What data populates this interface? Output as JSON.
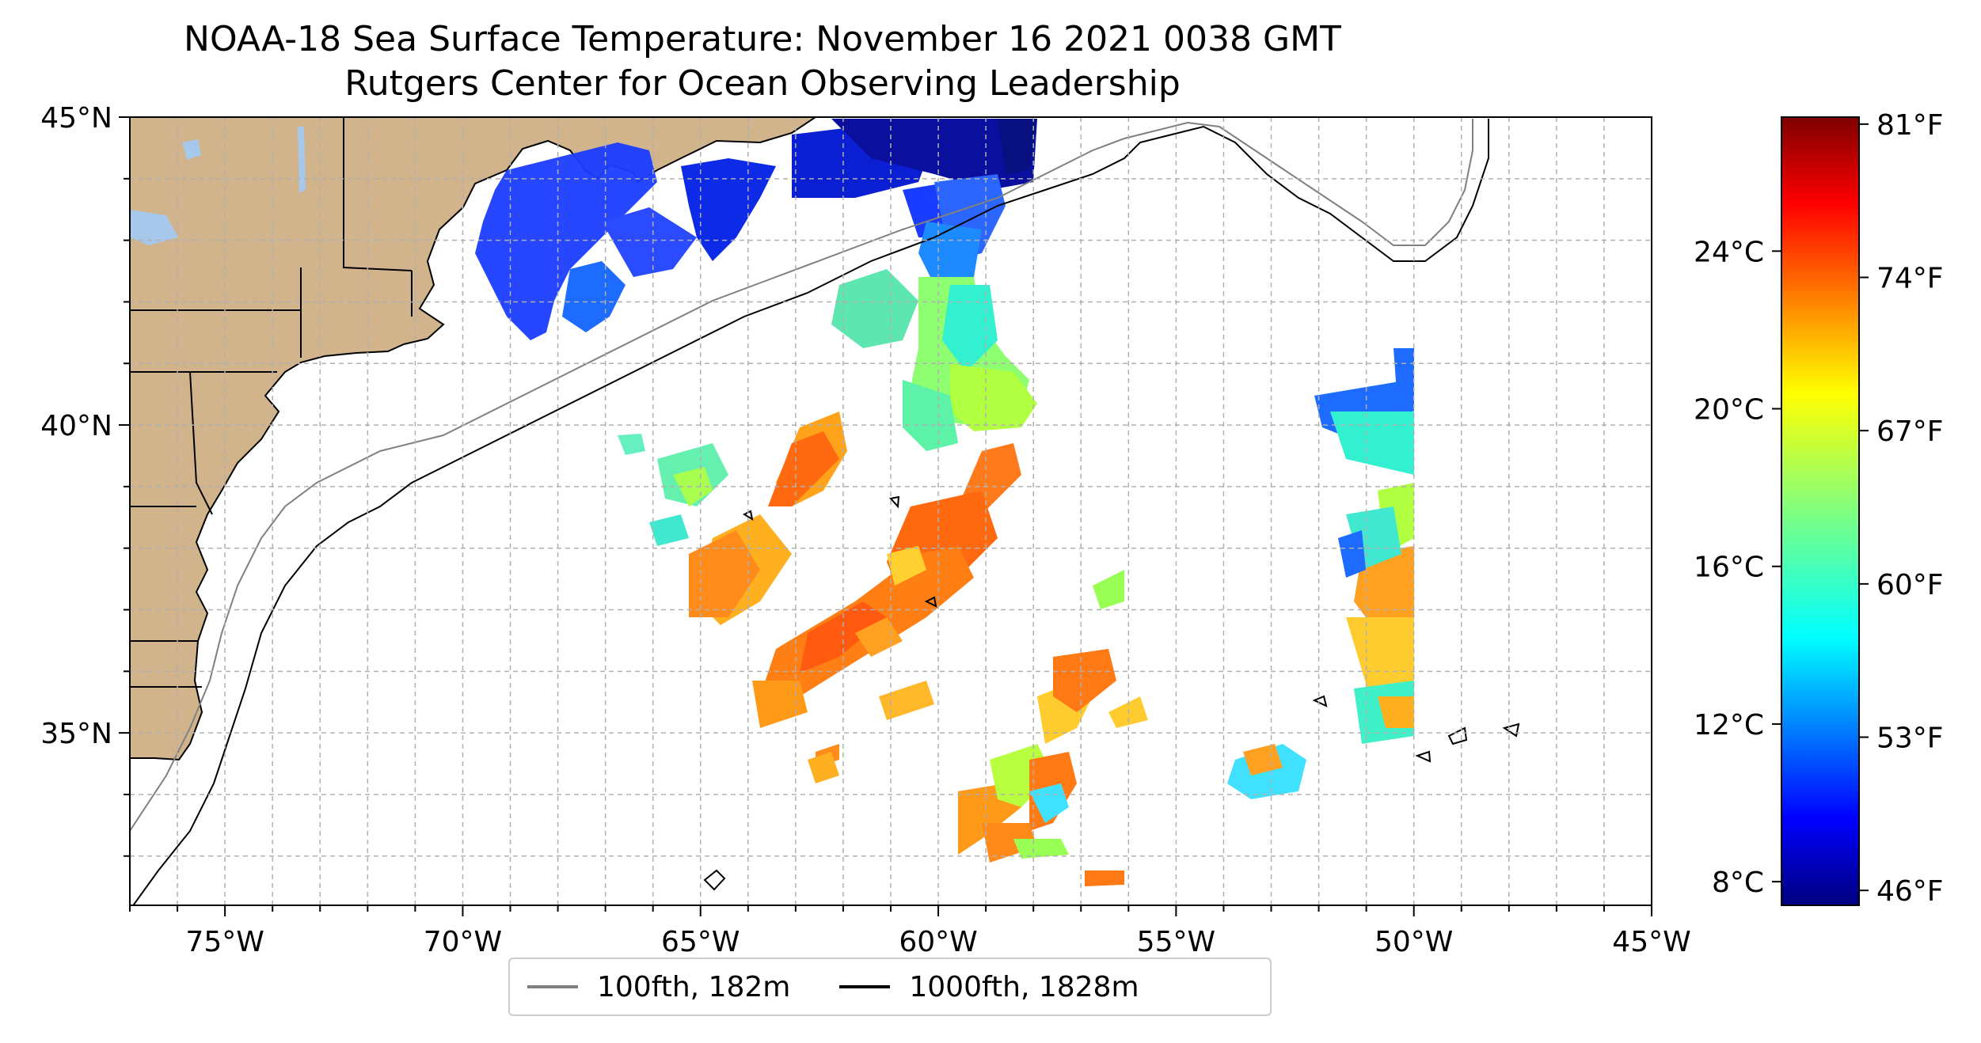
{
  "title": "NOAA-18 Sea Surface Temperature: November 16 2021 0038 GMT",
  "subtitle": "Rutgers Center for Ocean Observing Leadership",
  "map": {
    "lon_range": [
      -77,
      -45
    ],
    "lat_range": [
      32.2,
      45
    ],
    "land_color": "#d2b48c",
    "lake_color": "#a6c8ea",
    "lat_ticks": [
      {
        "value": 45,
        "label": "45°N"
      },
      {
        "value": 40,
        "label": "40°N"
      },
      {
        "value": 35,
        "label": "35°N"
      }
    ],
    "lon_ticks": [
      {
        "value": -75,
        "label": "75°W"
      },
      {
        "value": -70,
        "label": "70°W"
      },
      {
        "value": -65,
        "label": "65°W"
      },
      {
        "value": -60,
        "label": "60°W"
      },
      {
        "value": -55,
        "label": "55°W"
      },
      {
        "value": -50,
        "label": "50°W"
      },
      {
        "value": -45,
        "label": "45°W"
      }
    ],
    "grid": "dashed, every 1 degree"
  },
  "legend": {
    "items": [
      {
        "label": "100fth, 182m",
        "color": "#808080"
      },
      {
        "label": "1000fth, 1828m",
        "color": "#000000"
      }
    ]
  },
  "colorbar": {
    "colormap": "jet",
    "range_c": [
      7.4,
      27.4
    ],
    "celsius_ticks": [
      {
        "value": 24,
        "label": "24°C"
      },
      {
        "value": 20,
        "label": "20°C"
      },
      {
        "value": 16,
        "label": "16°C"
      },
      {
        "value": 12,
        "label": "12°C"
      },
      {
        "value": 8,
        "label": "8°C"
      }
    ],
    "fahrenheit_ticks": [
      {
        "value": 81,
        "label": "81°F"
      },
      {
        "value": 74,
        "label": "74°F"
      },
      {
        "value": 67,
        "label": "67°F"
      },
      {
        "value": 60,
        "label": "60°F"
      },
      {
        "value": 53,
        "label": "53°F"
      },
      {
        "value": 46,
        "label": "46°F"
      }
    ]
  }
}
